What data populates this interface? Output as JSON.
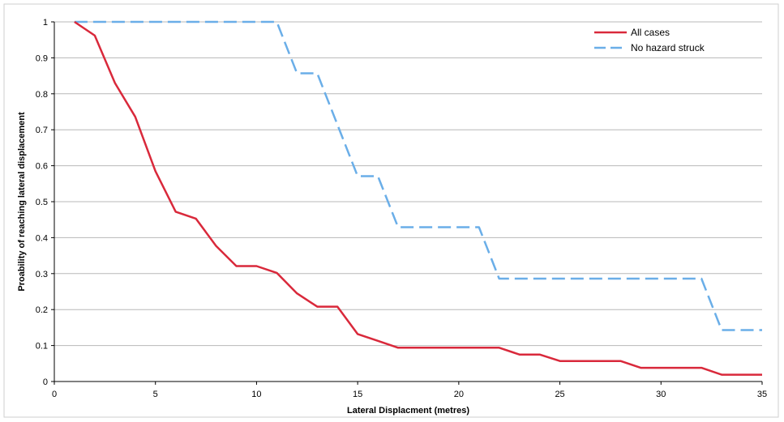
{
  "chart_data": {
    "type": "line",
    "xlabel": "Lateral Displacment (metres)",
    "ylabel": "Proability of reaching lateral displacement",
    "xlim": [
      0,
      35
    ],
    "ylim": [
      0,
      1
    ],
    "x_ticks": [
      0,
      5,
      10,
      15,
      20,
      25,
      30,
      35
    ],
    "y_ticks": [
      0,
      0.1,
      0.2,
      0.3,
      0.4,
      0.5,
      0.6,
      0.7,
      0.8,
      0.9,
      1
    ],
    "grid": "horizontal",
    "legend_position": "top-right",
    "series": [
      {
        "name": "All cases",
        "color": "#d9293b",
        "style": "solid",
        "x": [
          1,
          2,
          3,
          4,
          5,
          6,
          7,
          8,
          9,
          10,
          11,
          12,
          13,
          14,
          15,
          16,
          17,
          18,
          19,
          20,
          21,
          22,
          23,
          24,
          25,
          26,
          27,
          28,
          29,
          30,
          31,
          32,
          33,
          34,
          35
        ],
        "y": [
          1,
          0.962,
          0.83,
          0.736,
          0.585,
          0.472,
          0.453,
          0.377,
          0.321,
          0.321,
          0.302,
          0.245,
          0.208,
          0.208,
          0.132,
          0.113,
          0.094,
          0.094,
          0.094,
          0.094,
          0.094,
          0.094,
          0.075,
          0.075,
          0.057,
          0.057,
          0.057,
          0.057,
          0.038,
          0.038,
          0.038,
          0.038,
          0.019,
          0.019,
          0.019
        ]
      },
      {
        "name": "No hazard struck",
        "color": "#6aaee8",
        "style": "dashed",
        "x": [
          1,
          2,
          3,
          4,
          5,
          6,
          7,
          8,
          9,
          10,
          11,
          12,
          13,
          14,
          15,
          16,
          17,
          18,
          19,
          20,
          21,
          22,
          23,
          24,
          25,
          26,
          27,
          28,
          29,
          30,
          31,
          32,
          33,
          34,
          35
        ],
        "y": [
          1,
          1,
          1,
          1,
          1,
          1,
          1,
          1,
          1,
          1,
          1,
          0.857,
          0.857,
          0.714,
          0.571,
          0.571,
          0.429,
          0.429,
          0.429,
          0.429,
          0.429,
          0.286,
          0.286,
          0.286,
          0.286,
          0.286,
          0.286,
          0.286,
          0.286,
          0.286,
          0.286,
          0.286,
          0.143,
          0.143,
          0.143
        ]
      }
    ]
  }
}
